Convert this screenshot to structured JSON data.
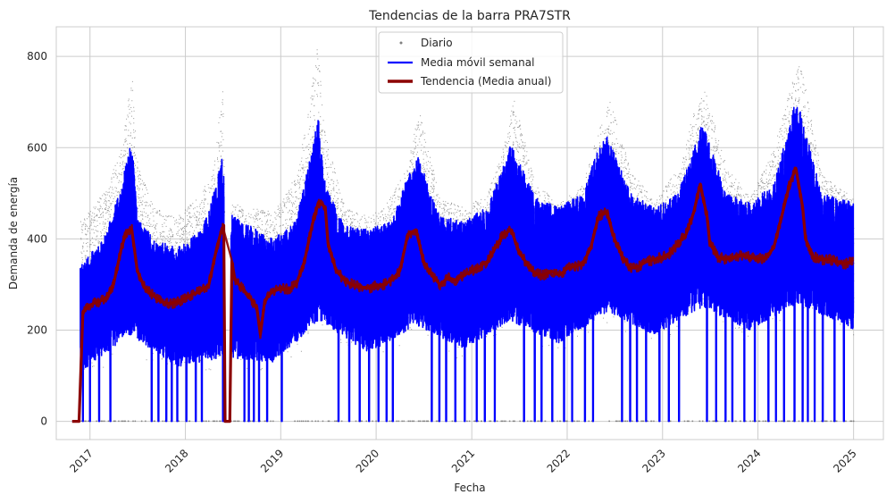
{
  "chart_data": {
    "type": "line",
    "title": "Tendencias de la barra PRA7STR",
    "xlabel": "Fecha",
    "ylabel": "Demanda de energía",
    "xlim": [
      "2016-08-25",
      "2025-04-25"
    ],
    "ylim": [
      -40,
      865
    ],
    "x_ticks": [
      "2017",
      "2018",
      "2019",
      "2020",
      "2021",
      "2022",
      "2023",
      "2024",
      "2025"
    ],
    "y_ticks": [
      0,
      200,
      400,
      600,
      800
    ],
    "grid": true,
    "legend_position": "top-center",
    "colors": {
      "daily": "#808080",
      "weekly": "#0000ff",
      "trend": "#8b0000",
      "grid": "#cccccc",
      "spine": "#cccccc"
    },
    "series": [
      {
        "name": "Diario",
        "style": "scatter",
        "upper_envelope": {
          "x": [
            "2016-12-01",
            "2017-03-01",
            "2017-05-01",
            "2017-06-10",
            "2017-07-01",
            "2017-09-01",
            "2017-12-01",
            "2018-03-01",
            "2018-04-20",
            "2018-05-20",
            "2018-06-10",
            "2018-07-01",
            "2018-09-01",
            "2018-12-01",
            "2019-03-01",
            "2019-04-20",
            "2019-05-20",
            "2019-06-15",
            "2019-09-01",
            "2019-12-01",
            "2020-02-01",
            "2020-05-01",
            "2020-06-10",
            "2020-09-01",
            "2020-12-01",
            "2021-03-01",
            "2021-05-01",
            "2021-06-10",
            "2021-09-01",
            "2021-12-01",
            "2022-03-01",
            "2022-05-01",
            "2022-06-10",
            "2022-09-01",
            "2022-12-01",
            "2023-03-01",
            "2023-05-01",
            "2023-06-10",
            "2023-09-01",
            "2023-12-01",
            "2024-03-01",
            "2024-05-01",
            "2024-06-10",
            "2024-09-01",
            "2024-12-31"
          ],
          "y": [
            440,
            510,
            600,
            770,
            560,
            470,
            450,
            500,
            560,
            745,
            490,
            480,
            470,
            460,
            540,
            700,
            825,
            640,
            470,
            450,
            470,
            560,
            690,
            490,
            470,
            500,
            610,
            710,
            520,
            480,
            520,
            640,
            710,
            550,
            480,
            560,
            680,
            730,
            560,
            490,
            600,
            730,
            790,
            540,
            490
          ]
        }
      },
      {
        "name": "Media móvil semanal",
        "style": "line",
        "upper_envelope": {
          "x": [
            "2016-11-25",
            "2017-03-01",
            "2017-05-01",
            "2017-06-10",
            "2017-07-01",
            "2017-09-01",
            "2017-12-01",
            "2018-03-01",
            "2018-05-01",
            "2018-05-20",
            "2018-06-10",
            "2018-07-01",
            "2018-09-01",
            "2018-12-01",
            "2019-03-01",
            "2019-05-01",
            "2019-05-25",
            "2019-06-20",
            "2019-09-01",
            "2019-12-01",
            "2020-03-01",
            "2020-05-01",
            "2020-06-10",
            "2020-09-01",
            "2020-12-01",
            "2021-03-01",
            "2021-05-01",
            "2021-06-01",
            "2021-09-01",
            "2021-12-01",
            "2022-03-01",
            "2022-05-01",
            "2022-06-01",
            "2022-09-01",
            "2022-12-01",
            "2023-03-01",
            "2023-05-01",
            "2023-06-01",
            "2023-09-01",
            "2023-12-01",
            "2024-03-01",
            "2024-05-01",
            "2024-05-25",
            "2024-09-01",
            "2024-12-31"
          ],
          "y": [
            340,
            410,
            520,
            620,
            450,
            400,
            380,
            420,
            520,
            590,
            480,
            450,
            430,
            400,
            440,
            600,
            670,
            520,
            430,
            420,
            440,
            540,
            580,
            450,
            440,
            470,
            560,
            610,
            490,
            470,
            500,
            600,
            630,
            500,
            470,
            500,
            600,
            660,
            500,
            480,
            520,
            650,
            720,
            500,
            480
          ]
        },
        "lower_envelope": {
          "x": [
            "2016-12-01",
            "2017-06-01",
            "2017-12-01",
            "2018-06-01",
            "2018-12-01",
            "2019-06-01",
            "2019-12-01",
            "2020-06-01",
            "2020-12-01",
            "2021-06-01",
            "2021-12-01",
            "2022-06-01",
            "2022-12-01",
            "2023-06-01",
            "2023-12-01",
            "2024-06-01",
            "2024-12-31"
          ],
          "y": [
            110,
            190,
            120,
            140,
            130,
            220,
            150,
            210,
            160,
            220,
            170,
            240,
            190,
            250,
            200,
            260,
            200
          ]
        },
        "dropout_dates": [
          "2016-12-05",
          "2017-01-01",
          "2017-02-05",
          "2017-03-20",
          "2017-08-25",
          "2017-09-20",
          "2017-10-20",
          "2017-11-10",
          "2017-12-01",
          "2018-01-05",
          "2018-02-10",
          "2018-03-05",
          "2018-05-25",
          "2018-06-12",
          "2018-08-15",
          "2018-09-01",
          "2018-09-20",
          "2018-10-10",
          "2018-11-10",
          "2019-01-05",
          "2019-08-10",
          "2019-09-20",
          "2019-10-30",
          "2019-12-05",
          "2020-01-10",
          "2020-02-10",
          "2020-03-05",
          "2020-08-01",
          "2020-08-30",
          "2020-09-25",
          "2020-10-30",
          "2020-12-05",
          "2021-01-20",
          "2021-02-20",
          "2021-03-30",
          "2021-07-20",
          "2021-08-30",
          "2021-09-25",
          "2021-11-05",
          "2021-12-20",
          "2022-01-20",
          "2022-03-10",
          "2022-04-10",
          "2022-07-30",
          "2022-08-30",
          "2022-09-25",
          "2022-10-30",
          "2022-12-20",
          "2023-01-25",
          "2023-03-05",
          "2023-06-20",
          "2023-07-25",
          "2023-08-30",
          "2023-09-25",
          "2023-11-10",
          "2023-12-20",
          "2024-02-10",
          "2024-03-10",
          "2024-04-10",
          "2024-05-20",
          "2024-06-20",
          "2024-07-10",
          "2024-08-05",
          "2024-09-05",
          "2024-10-20",
          "2024-11-25"
        ]
      },
      {
        "name": "Tendencia (Media anual)",
        "style": "line",
        "x": [
          "2016-10-25",
          "2016-11-20",
          "2016-12-05",
          "2017-01-01",
          "2017-02-01",
          "2017-03-01",
          "2017-04-01",
          "2017-05-01",
          "2017-05-20",
          "2017-06-10",
          "2017-07-01",
          "2017-08-01",
          "2017-09-01",
          "2017-10-01",
          "2017-11-01",
          "2017-12-01",
          "2018-01-01",
          "2018-02-01",
          "2018-03-01",
          "2018-04-01",
          "2018-05-01",
          "2018-05-20",
          "2018-05-28",
          "2018-06-02",
          "2018-06-20",
          "2018-06-28",
          "2018-07-10",
          "2018-08-01",
          "2018-09-01",
          "2018-10-01",
          "2018-10-15",
          "2018-11-01",
          "2018-12-01",
          "2019-01-01",
          "2019-02-01",
          "2019-03-01",
          "2019-04-01",
          "2019-05-01",
          "2019-05-25",
          "2019-06-20",
          "2019-07-01",
          "2019-08-01",
          "2019-09-01",
          "2019-10-01",
          "2019-11-01",
          "2019-12-01",
          "2020-01-01",
          "2020-02-01",
          "2020-03-01",
          "2020-04-01",
          "2020-05-01",
          "2020-06-01",
          "2020-07-01",
          "2020-08-01",
          "2020-09-01",
          "2020-10-01",
          "2020-11-01",
          "2020-12-01",
          "2021-01-01",
          "2021-02-01",
          "2021-03-01",
          "2021-04-01",
          "2021-05-01",
          "2021-06-01",
          "2021-07-01",
          "2021-08-01",
          "2021-09-01",
          "2021-10-01",
          "2021-11-01",
          "2021-12-01",
          "2022-01-01",
          "2022-02-01",
          "2022-03-01",
          "2022-04-01",
          "2022-05-01",
          "2022-06-01",
          "2022-07-01",
          "2022-08-01",
          "2022-09-01",
          "2022-10-01",
          "2022-11-01",
          "2022-12-01",
          "2023-01-01",
          "2023-02-01",
          "2023-03-01",
          "2023-04-01",
          "2023-05-01",
          "2023-05-25",
          "2023-06-20",
          "2023-07-01",
          "2023-08-01",
          "2023-09-01",
          "2023-10-01",
          "2023-11-01",
          "2023-12-01",
          "2024-01-01",
          "2024-02-01",
          "2024-03-01",
          "2024-04-01",
          "2024-05-01",
          "2024-05-25",
          "2024-06-20",
          "2024-07-01",
          "2024-08-01",
          "2024-09-01",
          "2024-10-01",
          "2024-11-01",
          "2024-12-01",
          "2024-12-31"
        ],
        "y": [
          0,
          0,
          240,
          255,
          262,
          268,
          300,
          380,
          415,
          420,
          330,
          290,
          275,
          262,
          258,
          262,
          270,
          280,
          285,
          300,
          380,
          420,
          430,
          0,
          0,
          350,
          310,
          295,
          275,
          250,
          190,
          265,
          285,
          290,
          290,
          300,
          350,
          430,
          480,
          470,
          390,
          330,
          310,
          300,
          295,
          292,
          298,
          300,
          310,
          330,
          410,
          420,
          350,
          320,
          300,
          315,
          310,
          320,
          330,
          340,
          350,
          380,
          410,
          420,
          370,
          345,
          325,
          320,
          330,
          320,
          335,
          340,
          345,
          380,
          450,
          460,
          400,
          360,
          335,
          340,
          350,
          355,
          360,
          370,
          390,
          410,
          460,
          520,
          450,
          390,
          360,
          355,
          360,
          365,
          360,
          355,
          360,
          380,
          450,
          520,
          555,
          470,
          400,
          360,
          355,
          355,
          350,
          345,
          355
        ]
      }
    ]
  }
}
